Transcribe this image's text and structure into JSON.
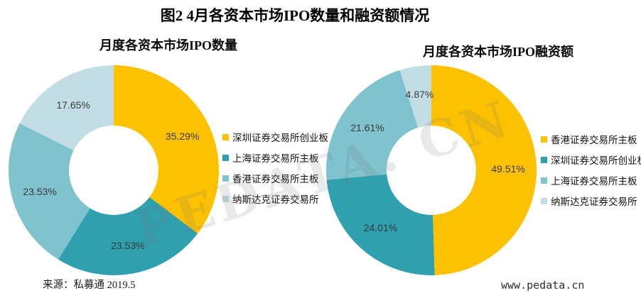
{
  "title": "图2 4月各资本市场IPO数量和融资额情况",
  "watermark": "PEDATA. CN",
  "source": "来源：私募通  2019.5",
  "website": "www.pedata.cn",
  "palette": {
    "gold": "#FCC101",
    "teal": "#2FA0AE",
    "light_teal": "#7FC3CF",
    "pale_blue": "#C2DDE4"
  },
  "chart_data": [
    {
      "type": "pie",
      "subtype": "donut",
      "title": "月度各资本市场IPO数量",
      "categories": [
        "深圳证券交易所创业板",
        "上海证券交易所主板",
        "香港证券交易所主板",
        "纳斯达克证券交易所"
      ],
      "values": [
        35.29,
        23.53,
        23.53,
        17.65
      ],
      "value_labels": [
        "35.29%",
        "23.53%",
        "23.53%",
        "17.65%"
      ],
      "unit": "%",
      "colors": [
        "#FCC101",
        "#2FA0AE",
        "#7FC3CF",
        "#C2DDE4"
      ],
      "start_angle_deg": 0,
      "direction": "clockwise",
      "donut_hole_ratio": 0.43,
      "legend_position": "right"
    },
    {
      "type": "pie",
      "subtype": "donut",
      "title": "月度各资本市场IPO融资额",
      "categories": [
        "香港证券交易所主板",
        "深圳证券交易所创业板",
        "上海证券交易所主板",
        "纳斯达克证券交易所"
      ],
      "values": [
        49.51,
        24.01,
        21.61,
        4.87
      ],
      "value_labels": [
        "49.51%",
        "24.01%",
        "21.61%",
        "4.87%"
      ],
      "unit": "%",
      "colors": [
        "#FCC101",
        "#2FA0AE",
        "#7FC3CF",
        "#C2DDE4"
      ],
      "start_angle_deg": 0,
      "direction": "clockwise",
      "donut_hole_ratio": 0.43,
      "legend_position": "right"
    }
  ]
}
